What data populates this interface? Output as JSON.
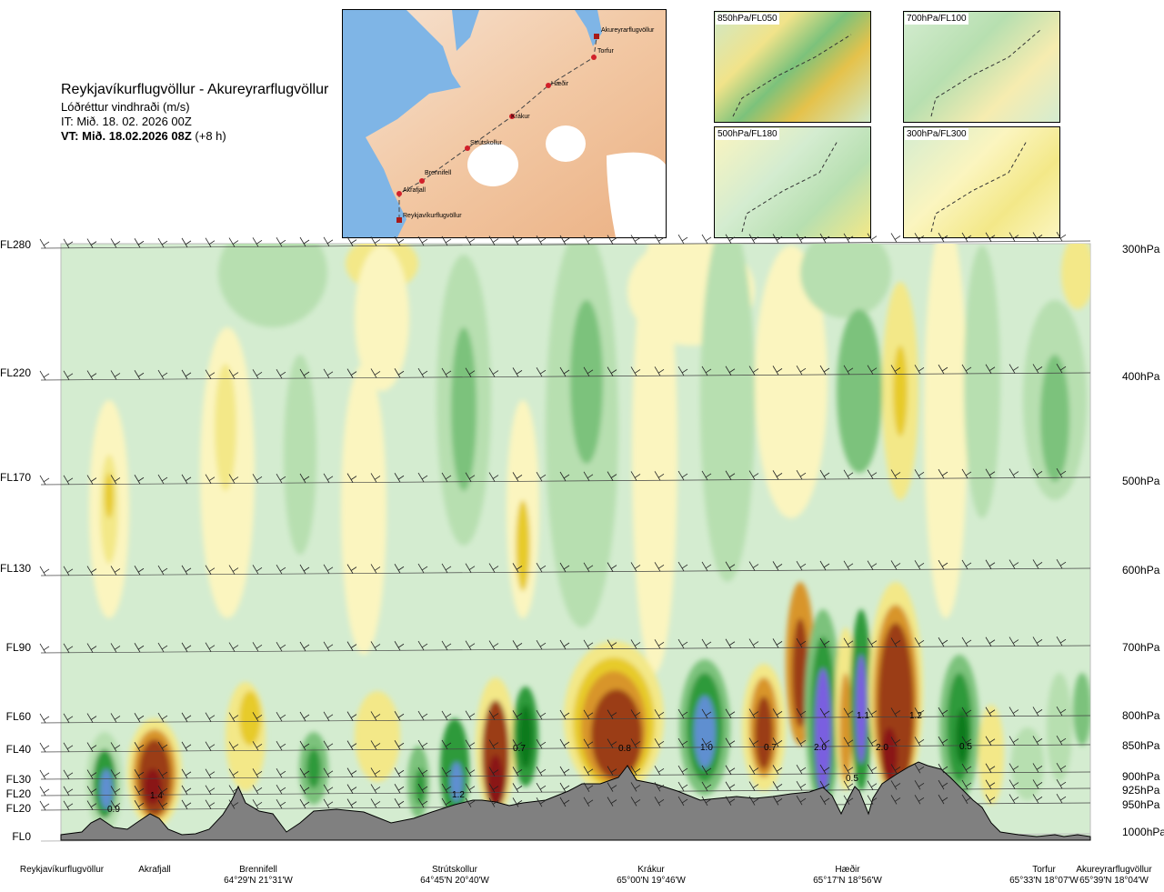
{
  "header": {
    "title": "Reykjavíkurflugvöllur - Akureyrarflugvöllur",
    "variable": "Lóðréttur vindhraði (m/s)",
    "it": "IT: Mið. 18. 02. 2026 00Z",
    "vt_bold": "VT: Mið. 18.02.2026 08Z",
    "vt_offset": "(+8 h)"
  },
  "map": {
    "places": [
      "Akureyrarflugvöllur",
      "Torfur",
      "Hæðir",
      "Krákur",
      "Strútskollur",
      "Brennifell",
      "Akrafjall",
      "Reykjavíkurflugvöllur"
    ]
  },
  "level_panels": [
    "850hPa/FL050",
    "700hPa/FL100",
    "500hPa/FL180",
    "300hPa/FL300"
  ],
  "chart_data": {
    "type": "heatmap",
    "title": "Lóðréttur vindhraði (m/s)",
    "flight_levels": [
      "FL280",
      "FL220",
      "FL170",
      "FL130",
      "FL90",
      "FL60",
      "FL40",
      "FL30",
      "FL20",
      "FL20",
      "FL0"
    ],
    "pressure_levels": [
      "300hPa",
      "400hPa",
      "500hPa",
      "600hPa",
      "700hPa",
      "800hPa",
      "850hPa",
      "900hPa",
      "925hPa",
      "950hPa",
      "1000hPa"
    ],
    "contour_labels": [
      "0.9",
      "1.4",
      "1.2",
      "0.7",
      "0.8",
      "1.0",
      "0.7",
      "2.0",
      "0.5",
      "1.1",
      "2.0",
      "1.2",
      "0.5"
    ],
    "waypoints": [
      {
        "name": "Reykjavíkurflugvöllur",
        "coord": ""
      },
      {
        "name": "Akrafjall",
        "coord": ""
      },
      {
        "name": "Brennifell",
        "coord": "64°29'N 21°31'W"
      },
      {
        "name": "Strútskollur",
        "coord": "64°45'N 20°40'W"
      },
      {
        "name": "Krákur",
        "coord": "65°00'N 19°46'W"
      },
      {
        "name": "Hæðir",
        "coord": "65°17'N 18°56'W"
      },
      {
        "name": "Torfur",
        "coord": "65°33'N 18°07'W"
      },
      {
        "name": "Akureyrarflugvöllur",
        "coord": "65°39'N 18°04'W"
      }
    ],
    "colors": {
      "neutral": "#d4ecd0",
      "light_green": "#b7dfb0",
      "mid_green": "#7cc27b",
      "green": "#2e9a3b",
      "dark_green": "#0f7a1e",
      "blue": "#5f8fd0",
      "violet": "#7a5ee0",
      "light_yellow": "#fbf5bf",
      "yellow": "#f3e888",
      "gold": "#e7cb2a",
      "orange": "#d8952a",
      "brown": "#9b3d13",
      "dark_red": "#8a1414",
      "terrain": "#808080"
    }
  }
}
